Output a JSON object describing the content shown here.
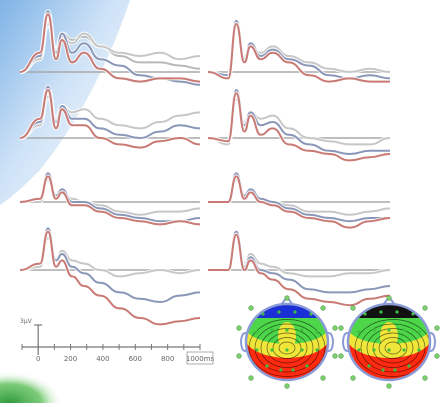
{
  "chart_data": [
    {
      "type": "line",
      "panel": "top-left-1",
      "series": [
        {
          "color": "#c97a74",
          "x": [
            -100,
            0,
            40,
            80,
            110,
            160,
            220,
            300,
            400,
            500,
            600,
            700,
            800
          ],
          "y": [
            0,
            6,
            18,
            4,
            10,
            3,
            6,
            1,
            -2,
            -3,
            -2,
            -2,
            -3
          ]
        },
        {
          "color": "#8a97b8",
          "x": [
            -100,
            0,
            40,
            80,
            110,
            160,
            220,
            300,
            400,
            500,
            600,
            700,
            800
          ],
          "y": [
            0,
            5,
            19,
            6,
            12,
            6,
            9,
            4,
            2,
            -1,
            -2,
            -3,
            -4
          ]
        },
        {
          "color": "#c7c7c7",
          "x": [
            -100,
            0,
            40,
            80,
            110,
            160,
            220,
            300,
            400,
            500,
            600,
            700,
            800
          ],
          "y": [
            0,
            4,
            17,
            5,
            11,
            9,
            12,
            8,
            6,
            5,
            6,
            4,
            5
          ]
        },
        {
          "color": "#b9b9b9",
          "x": [
            -100,
            0,
            40,
            80,
            110,
            160,
            220,
            300,
            400,
            500,
            600,
            700,
            800
          ],
          "y": [
            0,
            4,
            15,
            7,
            12,
            10,
            11,
            8,
            5,
            3,
            3,
            2,
            1
          ]
        }
      ]
    },
    {
      "type": "line",
      "panel": "top-right-1",
      "series": [
        {
          "color": "#c97a74",
          "x": [
            -100,
            0,
            40,
            80,
            110,
            160,
            220,
            300,
            400,
            500,
            600,
            700,
            800
          ],
          "y": [
            0,
            -2,
            15,
            3,
            8,
            4,
            6,
            3,
            -1,
            -3,
            -2,
            -3,
            -3
          ]
        },
        {
          "color": "#8a97b8",
          "x": [
            -100,
            0,
            40,
            80,
            110,
            160,
            220,
            300,
            400,
            500,
            600,
            700,
            800
          ],
          "y": [
            0,
            -1,
            16,
            4,
            9,
            5,
            7,
            4,
            2,
            -1,
            -2,
            -1,
            -2
          ]
        },
        {
          "color": "#c7c7c7",
          "x": [
            -100,
            0,
            40,
            80,
            110,
            160,
            220,
            300,
            400,
            500,
            600,
            700,
            800
          ],
          "y": [
            0,
            -2,
            14,
            5,
            8,
            6,
            8,
            5,
            3,
            1,
            0,
            1,
            0
          ]
        }
      ]
    },
    {
      "type": "line",
      "panel": "top-left-2",
      "series": [
        {
          "color": "#c97a74",
          "x": [
            -100,
            0,
            40,
            80,
            110,
            160,
            220,
            300,
            400,
            500,
            600,
            700,
            800
          ],
          "y": [
            0,
            6,
            15,
            3,
            9,
            4,
            4,
            0,
            -2,
            -3,
            -1,
            0,
            -2
          ]
        },
        {
          "color": "#8a97b8",
          "x": [
            -100,
            0,
            40,
            80,
            110,
            160,
            220,
            300,
            400,
            500,
            600,
            700,
            800
          ],
          "y": [
            0,
            5,
            16,
            5,
            10,
            6,
            6,
            3,
            1,
            0,
            2,
            4,
            3
          ]
        },
        {
          "color": "#c7c7c7",
          "x": [
            -100,
            0,
            40,
            80,
            110,
            160,
            220,
            300,
            400,
            500,
            600,
            700,
            800
          ],
          "y": [
            0,
            4,
            13,
            6,
            10,
            8,
            9,
            6,
            4,
            3,
            5,
            7,
            8
          ]
        }
      ]
    },
    {
      "type": "line",
      "panel": "top-right-2",
      "series": [
        {
          "color": "#c97a74",
          "x": [
            -100,
            0,
            40,
            80,
            110,
            160,
            220,
            300,
            400,
            500,
            600,
            700,
            800
          ],
          "y": [
            0,
            -1,
            14,
            2,
            7,
            1,
            3,
            -2,
            -4,
            -5,
            -7,
            -6,
            -5
          ]
        },
        {
          "color": "#8a97b8",
          "x": [
            -100,
            0,
            40,
            80,
            110,
            160,
            220,
            300,
            400,
            500,
            600,
            700,
            800
          ],
          "y": [
            0,
            -1,
            15,
            4,
            8,
            4,
            5,
            1,
            -2,
            -4,
            -5,
            -4,
            -4
          ]
        },
        {
          "color": "#c7c7c7",
          "x": [
            -100,
            0,
            40,
            80,
            110,
            160,
            220,
            300,
            400,
            500,
            600,
            700,
            800
          ],
          "y": [
            0,
            -2,
            12,
            5,
            8,
            6,
            7,
            3,
            0,
            -1,
            -2,
            -2,
            0
          ]
        }
      ]
    },
    {
      "type": "line",
      "panel": "bottom-left-1",
      "series": [
        {
          "color": "#c97a74",
          "x": [
            -100,
            0,
            40,
            80,
            110,
            160,
            220,
            300,
            400,
            500,
            600,
            700,
            800
          ],
          "y": [
            0,
            1,
            8,
            1,
            3,
            -1,
            -1,
            -3,
            -5,
            -6,
            -7,
            -6,
            -7
          ]
        },
        {
          "color": "#8a97b8",
          "x": [
            -100,
            0,
            40,
            80,
            110,
            160,
            220,
            300,
            400,
            500,
            600,
            700,
            800
          ],
          "y": [
            0,
            1,
            9,
            2,
            4,
            0,
            0,
            -2,
            -4,
            -5,
            -6,
            -6,
            -5
          ]
        },
        {
          "color": "#c7c7c7",
          "x": [
            -100,
            0,
            40,
            80,
            110,
            160,
            220,
            300,
            400,
            500,
            600,
            700,
            800
          ],
          "y": [
            0,
            0,
            7,
            2,
            3,
            1,
            0,
            -1,
            -3,
            -4,
            -3,
            -3,
            -2
          ]
        }
      ]
    },
    {
      "type": "line",
      "panel": "bottom-right-1",
      "series": [
        {
          "color": "#c97a74",
          "x": [
            -100,
            0,
            40,
            80,
            110,
            160,
            220,
            300,
            400,
            500,
            600,
            700,
            800
          ],
          "y": [
            0,
            0,
            8,
            1,
            3,
            0,
            -1,
            -3,
            -5,
            -6,
            -8,
            -6,
            -5
          ]
        },
        {
          "color": "#8a97b8",
          "x": [
            -100,
            0,
            40,
            80,
            110,
            160,
            220,
            300,
            400,
            500,
            600,
            700,
            800
          ],
          "y": [
            0,
            0,
            9,
            2,
            4,
            1,
            0,
            -2,
            -4,
            -5,
            -6,
            -5,
            -5
          ]
        },
        {
          "color": "#c7c7c7",
          "x": [
            -100,
            0,
            40,
            80,
            110,
            160,
            220,
            300,
            400,
            500,
            600,
            700,
            800
          ],
          "y": [
            0,
            0,
            7,
            2,
            3,
            1,
            0,
            -1,
            -3,
            -3,
            -4,
            -3,
            -2
          ]
        }
      ]
    },
    {
      "type": "line",
      "panel": "bottom-left-2",
      "series": [
        {
          "color": "#c97a74",
          "x": [
            -100,
            0,
            40,
            80,
            110,
            160,
            220,
            300,
            400,
            500,
            600,
            700,
            800
          ],
          "y": [
            0,
            2,
            12,
            1,
            3,
            -2,
            -5,
            -8,
            -12,
            -15,
            -17,
            -16,
            -15
          ]
        },
        {
          "color": "#8a97b8",
          "x": [
            -100,
            0,
            40,
            80,
            110,
            160,
            220,
            300,
            400,
            500,
            600,
            700,
            800
          ],
          "y": [
            0,
            2,
            13,
            3,
            5,
            1,
            -1,
            -4,
            -7,
            -9,
            -10,
            -8,
            -7
          ]
        },
        {
          "color": "#c7c7c7",
          "x": [
            -100,
            0,
            40,
            80,
            110,
            160,
            220,
            300,
            400,
            500,
            600,
            700,
            800
          ],
          "y": [
            0,
            1,
            10,
            3,
            6,
            3,
            2,
            0,
            -2,
            -1,
            0,
            -1,
            0
          ]
        }
      ]
    },
    {
      "type": "line",
      "panel": "bottom-right-2",
      "series": [
        {
          "color": "#c97a74",
          "x": [
            -100,
            0,
            40,
            80,
            110,
            160,
            220,
            300,
            400,
            500,
            600,
            700,
            800
          ],
          "y": [
            0,
            0,
            11,
            0,
            3,
            -1,
            -3,
            -6,
            -9,
            -10,
            -11,
            -9,
            -8
          ]
        },
        {
          "color": "#8a97b8",
          "x": [
            -100,
            0,
            40,
            80,
            110,
            160,
            220,
            300,
            400,
            500,
            600,
            700,
            800
          ],
          "y": [
            0,
            0,
            12,
            1,
            4,
            0,
            -1,
            -3,
            -6,
            -7,
            -7,
            -6,
            -5
          ]
        },
        {
          "color": "#c7c7c7",
          "x": [
            -100,
            0,
            40,
            80,
            110,
            160,
            220,
            300,
            400,
            500,
            600,
            700,
            800
          ],
          "y": [
            0,
            0,
            10,
            2,
            5,
            2,
            1,
            -1,
            -2,
            -2,
            -1,
            -1,
            0
          ]
        }
      ]
    }
  ],
  "scale_bar": {
    "amplitude_label": "3µV",
    "ticks": [
      "0",
      "200",
      "400",
      "600",
      "800",
      "1000ms"
    ],
    "xlim": [
      -100,
      1000
    ]
  },
  "topomaps": [
    {
      "name": "map-1",
      "colors": [
        "#1a2fd6",
        "#4dd64a",
        "#f0e63a",
        "#ff2a10"
      ]
    },
    {
      "name": "map-2",
      "colors": [
        "#111111",
        "#4dd64a",
        "#f0e63a",
        "#ff2a10"
      ]
    }
  ],
  "colors": {
    "red_series": "#c97a74",
    "blue_series": "#8a97b8",
    "gray_series": "#c7c7c7",
    "baseline": "#a8a8a8",
    "sky_blue": "#9fc7ee",
    "grass_green": "#2f9a3b"
  }
}
